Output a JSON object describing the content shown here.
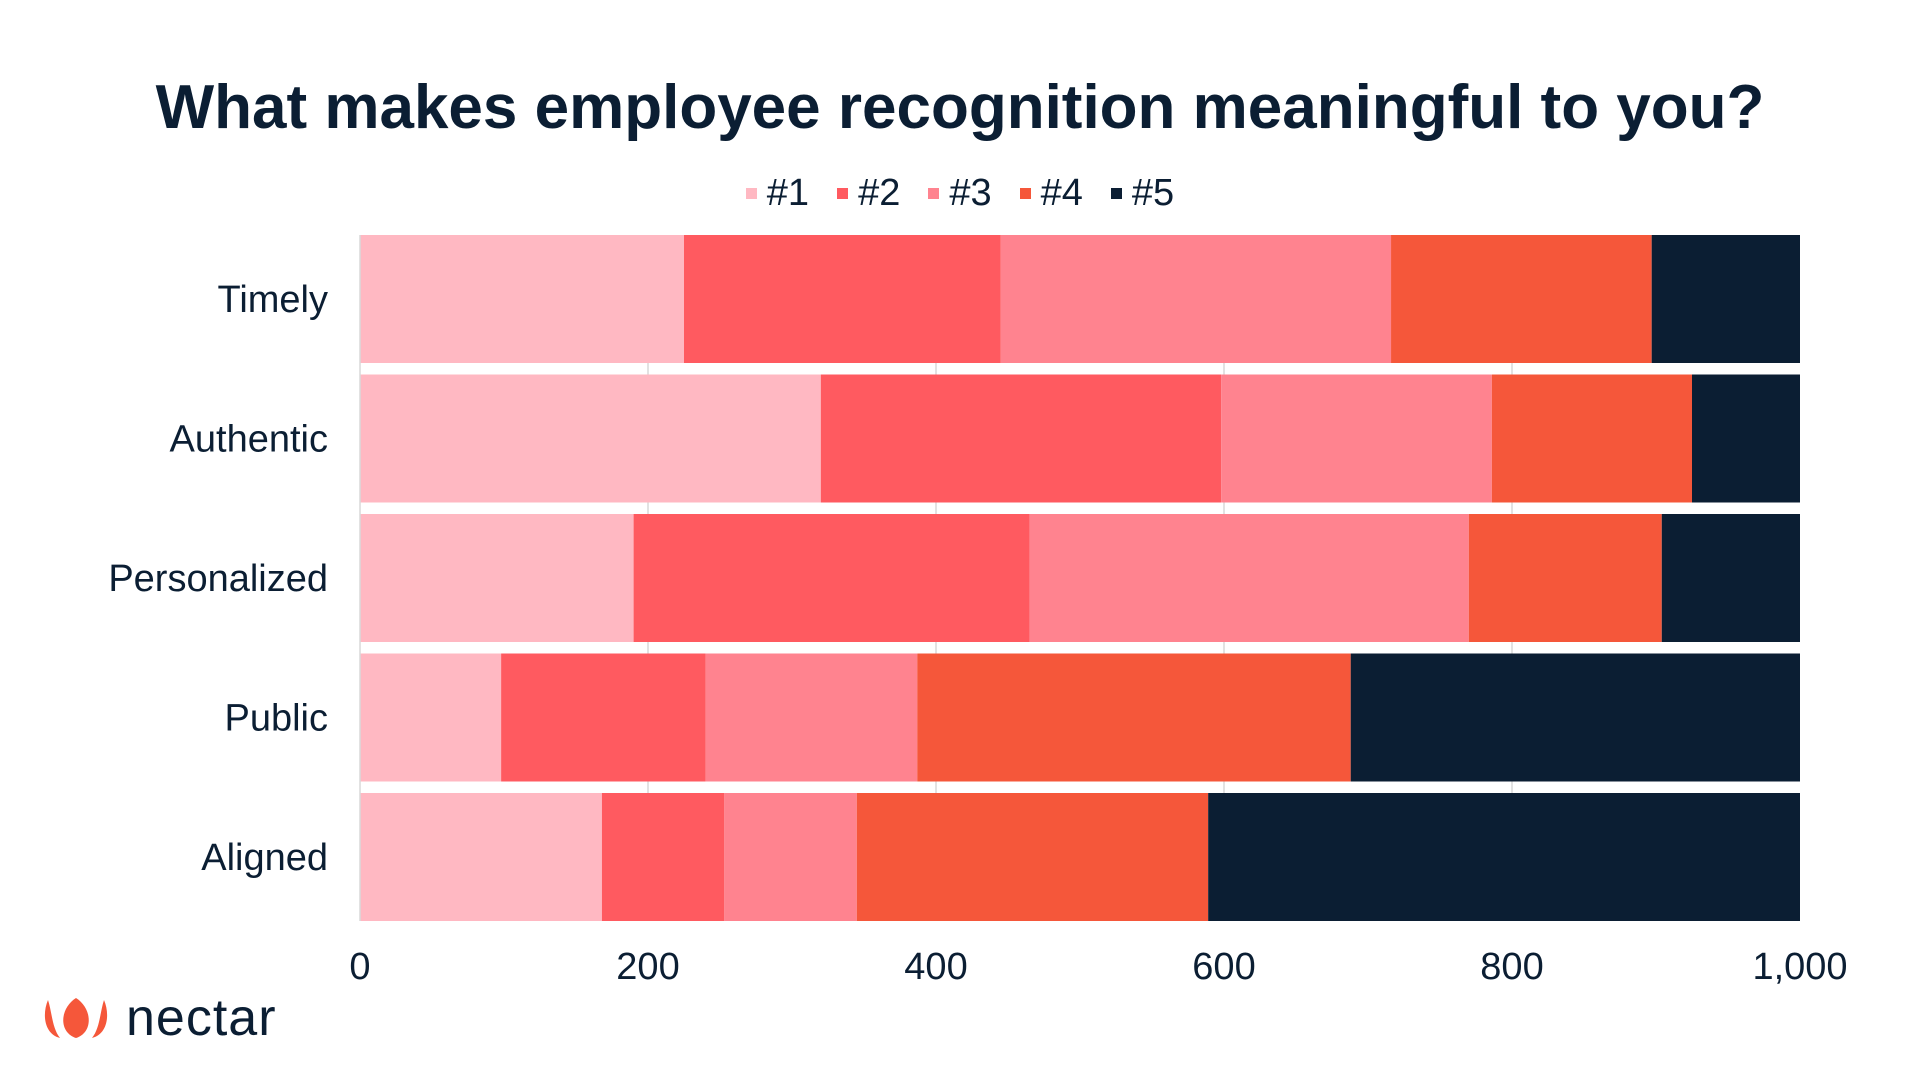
{
  "chart_data": {
    "type": "bar",
    "orientation": "horizontal",
    "stacked": true,
    "title": "What makes employee recognition meaningful to you?",
    "categories": [
      "Timely",
      "Authentic",
      "Personalized",
      "Public",
      "Aligned"
    ],
    "series": [
      {
        "name": "#1",
        "color": "#ffb8c2",
        "values": [
          225,
          320,
          190,
          98,
          168
        ]
      },
      {
        "name": "#2",
        "color": "#ff5a60",
        "values": [
          220,
          278,
          275,
          142,
          85
        ]
      },
      {
        "name": "#3",
        "color": "#ff838f",
        "values": [
          271,
          188,
          305,
          147,
          92
        ]
      },
      {
        "name": "#4",
        "color": "#f5573a",
        "values": [
          181,
          139,
          134,
          301,
          244
        ]
      },
      {
        "name": "#5",
        "color": "#0b1e33",
        "values": [
          103,
          75,
          96,
          312,
          411
        ]
      }
    ],
    "xlim": [
      0,
      1000
    ],
    "xticks": [
      "0",
      "200",
      "400",
      "600",
      "800",
      "1,000"
    ],
    "xtick_values": [
      0,
      200,
      400,
      600,
      800,
      1000
    ],
    "grid": "vertical",
    "legend_position": "top"
  },
  "brand": {
    "logo_text": "nectar",
    "logo_icon": "nectar-petals-icon",
    "accent": "#f5573a"
  }
}
